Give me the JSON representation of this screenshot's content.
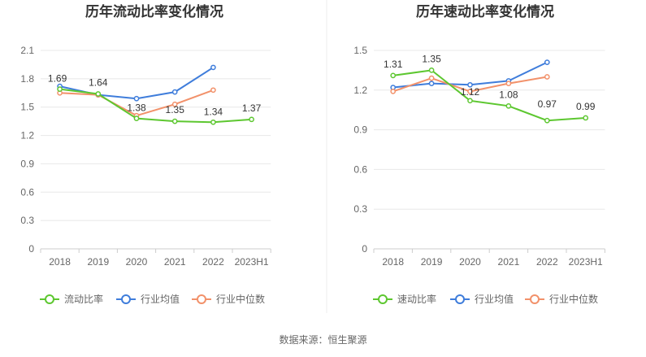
{
  "source_text": "数据来源：恒生聚源",
  "colors": {
    "primary": "#5dc730",
    "avg": "#3f7ddb",
    "median": "#f2916a"
  },
  "chart_data": [
    {
      "type": "line",
      "title": "历年流动比率变化情况",
      "categories": [
        "2018",
        "2019",
        "2020",
        "2021",
        "2022",
        "2023H1"
      ],
      "ylim": [
        0,
        2.1
      ],
      "yticks": [
        "0",
        "0.3",
        "0.6",
        "0.9",
        "1.2",
        "1.5",
        "1.8",
        "2.1"
      ],
      "grid": true,
      "legend_position": "bottom",
      "series": [
        {
          "name": "流动比率",
          "values": [
            1.69,
            1.64,
            1.38,
            1.35,
            1.34,
            1.37
          ],
          "labels": [
            "1.69",
            "1.64",
            "1.38",
            "1.35",
            "1.34",
            "1.37"
          ]
        },
        {
          "name": "行业均值",
          "values": [
            1.72,
            1.63,
            1.59,
            1.66,
            1.92,
            null
          ]
        },
        {
          "name": "行业中位数",
          "values": [
            1.65,
            1.63,
            1.41,
            1.53,
            1.68,
            null
          ]
        }
      ]
    },
    {
      "type": "line",
      "title": "历年速动比率变化情况",
      "categories": [
        "2018",
        "2019",
        "2020",
        "2021",
        "2022",
        "2023H1"
      ],
      "ylim": [
        0,
        1.5
      ],
      "yticks": [
        "0",
        "0.3",
        "0.6",
        "0.9",
        "1.2",
        "1.5"
      ],
      "grid": true,
      "legend_position": "bottom",
      "series": [
        {
          "name": "速动比率",
          "values": [
            1.31,
            1.35,
            1.12,
            1.08,
            0.97,
            0.99
          ],
          "labels": [
            "1.31",
            "1.35",
            "1.12",
            "1.08",
            "0.97",
            "0.99"
          ]
        },
        {
          "name": "行业均值",
          "values": [
            1.22,
            1.25,
            1.24,
            1.27,
            1.41,
            null
          ]
        },
        {
          "name": "行业中位数",
          "values": [
            1.19,
            1.29,
            1.19,
            1.25,
            1.3,
            null
          ]
        }
      ]
    }
  ]
}
